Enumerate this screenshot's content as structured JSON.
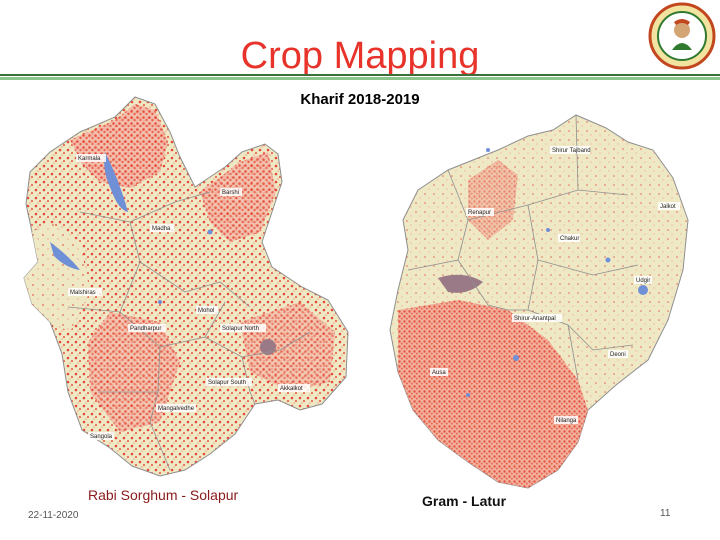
{
  "slide": {
    "title": "Crop Mapping",
    "subtitle": "Kharif 2018-2019",
    "date": "22-11-2020",
    "page_number": "11"
  },
  "maps": {
    "left": {
      "caption": "Rabi Sorghum - Solapur",
      "labels": {
        "karmala": "Karmala",
        "barshi": "Barshi",
        "madha": "Madha",
        "malshiras": "Malshiras",
        "pandharpur": "Pandharpur",
        "mohol": "Mohol",
        "solapur_north": "Solapur North",
        "solapur_south": "Solapur South",
        "akkalkot": "Akkalkot",
        "sangola": "Sangola",
        "mangalvedhe": "Mangalvedhe"
      }
    },
    "right": {
      "caption": "Gram - Latur",
      "labels": {
        "shirur_tajband": "Shirur Tajband",
        "renapur": "Renapur",
        "chakur": "Chakur",
        "jalkot": "Jalkot",
        "udgir": "Udgir",
        "shirur_anantpal": "Shirur-Anantpal",
        "deoni": "Deoni",
        "ausa": "Ausa",
        "nilanga": "Nilanga"
      }
    }
  },
  "colors": {
    "title": "#e8332b",
    "map_base": "#efe8c4",
    "crop": "#e44a3a",
    "water": "#6f8fd6",
    "urban": "#9a7a86",
    "boundary": "#9a9a9a"
  }
}
